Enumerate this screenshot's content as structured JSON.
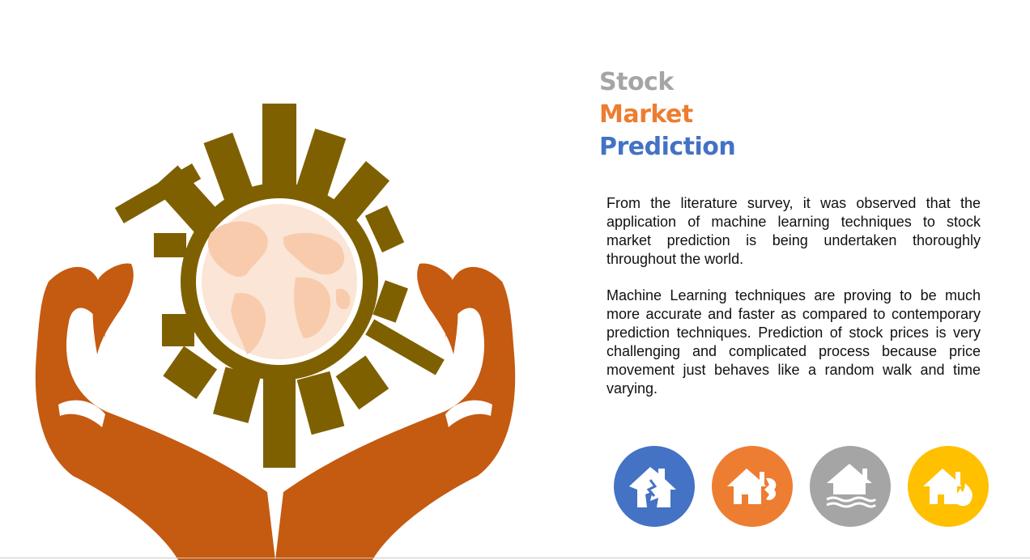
{
  "title": {
    "line1": "Stock",
    "line2": "Market",
    "line3": "Prediction"
  },
  "paragraphs": {
    "p1": "From the literature survey, it was observed that the application of machine learning techniques to stock market prediction is being undertaken thoroughly throughout the world.",
    "p2": "Machine Learning techniques are proving to be much more accurate and faster as compared to contemporary prediction techniques. Prediction of stock prices is very challenging and complicated process because price movement just behaves like a random walk and time varying."
  },
  "colors": {
    "title_gray": "#a5a5a5",
    "title_orange": "#ed7d31",
    "title_blue": "#4472c4",
    "hands": "#c55a11",
    "city": "#7f6000",
    "globe": "#fbe5d6",
    "land": "#f8cbad",
    "icon_blue": "#4472c4",
    "icon_orange": "#ed7d31",
    "icon_gray": "#a5a5a5",
    "icon_yellow": "#ffc000"
  },
  "icons": [
    {
      "name": "house-earthquake-icon",
      "color": "#4472c4"
    },
    {
      "name": "house-storm-icon",
      "color": "#ed7d31"
    },
    {
      "name": "house-flood-icon",
      "color": "#a5a5a5"
    },
    {
      "name": "house-fire-icon",
      "color": "#ffc000"
    }
  ]
}
